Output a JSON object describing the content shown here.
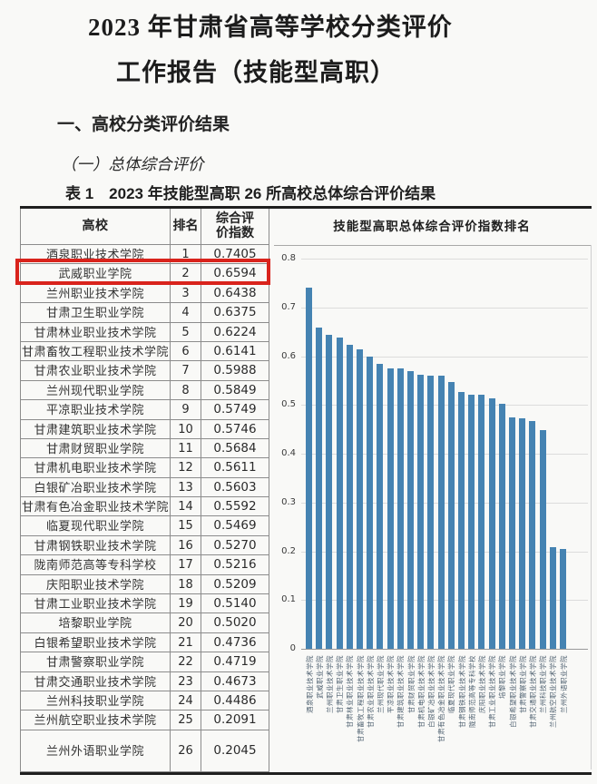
{
  "page": {
    "title_line1": "2023 年甘肃省高等学校分类评价",
    "title_line2": "工作报告（技能型高职）",
    "section_heading": "一、高校分类评价结果",
    "subsection_heading": "（一）总体综合评价",
    "table_caption": "表 1　2023 年技能型高职 26 所高校总体综合评价结果"
  },
  "table": {
    "columns": [
      "高校",
      "排名",
      "综合评价指数"
    ],
    "header": {
      "college": "高校",
      "rank": "排名",
      "index_line1": "综合评",
      "index_line2": "价指数"
    },
    "highlight": {
      "row_rank": 2,
      "color": "#d9231c"
    },
    "rows": [
      {
        "name": "酒泉职业技术学院",
        "rank": "1",
        "index": "0.7405"
      },
      {
        "name": "武威职业学院",
        "rank": "2",
        "index": "0.6594"
      },
      {
        "name": "兰州职业技术学院",
        "rank": "3",
        "index": "0.6438"
      },
      {
        "name": "甘肃卫生职业学院",
        "rank": "4",
        "index": "0.6375"
      },
      {
        "name": "甘肃林业职业技术学院",
        "rank": "5",
        "index": "0.6224"
      },
      {
        "name": "甘肃畜牧工程职业技术学院",
        "rank": "6",
        "index": "0.6141"
      },
      {
        "name": "甘肃农业职业技术学院",
        "rank": "7",
        "index": "0.5988"
      },
      {
        "name": "兰州现代职业学院",
        "rank": "8",
        "index": "0.5849"
      },
      {
        "name": "平凉职业技术学院",
        "rank": "9",
        "index": "0.5749"
      },
      {
        "name": "甘肃建筑职业技术学院",
        "rank": "10",
        "index": "0.5746"
      },
      {
        "name": "甘肃财贸职业学院",
        "rank": "11",
        "index": "0.5684"
      },
      {
        "name": "甘肃机电职业技术学院",
        "rank": "12",
        "index": "0.5611"
      },
      {
        "name": "白银矿冶职业技术学院",
        "rank": "13",
        "index": "0.5603"
      },
      {
        "name": "甘肃有色冶金职业技术学院",
        "rank": "14",
        "index": "0.5592"
      },
      {
        "name": "临夏现代职业学院",
        "rank": "15",
        "index": "0.5469"
      },
      {
        "name": "甘肃钢铁职业技术学院",
        "rank": "16",
        "index": "0.5270"
      },
      {
        "name": "陇南师范高等专科学校",
        "rank": "17",
        "index": "0.5216"
      },
      {
        "name": "庆阳职业技术学院",
        "rank": "18",
        "index": "0.5209"
      },
      {
        "name": "甘肃工业职业技术学院",
        "rank": "19",
        "index": "0.5140"
      },
      {
        "name": "培黎职业学院",
        "rank": "20",
        "index": "0.5020"
      },
      {
        "name": "白银希望职业技术学院",
        "rank": "21",
        "index": "0.4736"
      },
      {
        "name": "甘肃警察职业学院",
        "rank": "22",
        "index": "0.4719"
      },
      {
        "name": "甘肃交通职业技术学院",
        "rank": "23",
        "index": "0.4673"
      },
      {
        "name": "兰州科技职业学院",
        "rank": "24",
        "index": "0.4486"
      },
      {
        "name": "兰州航空职业技术学院",
        "rank": "25",
        "index": "0.2091"
      },
      {
        "name": "兰州外语职业学院",
        "rank": "26",
        "index": "0.2045"
      }
    ]
  },
  "chart_data": {
    "type": "bar",
    "title": "技能型高职总体综合评价指数排名",
    "categories": [
      "酒泉职业技术学院",
      "武威职业学院",
      "兰州职业技术学院",
      "甘肃卫生职业学院",
      "甘肃林业职业技术学院",
      "甘肃畜牧工程职业技术学院",
      "甘肃农业职业技术学院",
      "兰州现代职业学院",
      "平凉职业技术学院",
      "甘肃建筑职业技术学院",
      "甘肃财贸职业学院",
      "甘肃机电职业技术学院",
      "白银矿冶职业技术学院",
      "甘肃有色冶金职业技术学院",
      "临夏现代职业学院",
      "甘肃钢铁职业技术学院",
      "陇南师范高等专科学校",
      "庆阳职业技术学院",
      "甘肃工业职业技术学院",
      "培黎职业学院",
      "白银希望职业技术学院",
      "甘肃警察职业学院",
      "甘肃交通职业技术学院",
      "兰州科技职业学院",
      "兰州航空职业技术学院",
      "兰州外语职业学院"
    ],
    "values": [
      0.7405,
      0.6594,
      0.6438,
      0.6375,
      0.6224,
      0.6141,
      0.5988,
      0.5849,
      0.5749,
      0.5746,
      0.5684,
      0.5611,
      0.5603,
      0.5592,
      0.5469,
      0.527,
      0.5216,
      0.5209,
      0.514,
      0.502,
      0.4736,
      0.4719,
      0.4673,
      0.4486,
      0.2091,
      0.2045
    ],
    "xlabel": "",
    "ylabel": "",
    "ylim": [
      0,
      0.8
    ],
    "yticks": [
      "0",
      "0.1",
      "0.2",
      "0.3",
      "0.4",
      "0.5",
      "0.6",
      "0.7",
      "0.8"
    ],
    "grid": true,
    "legend_position": "none",
    "bar_color": "#4583b2"
  }
}
